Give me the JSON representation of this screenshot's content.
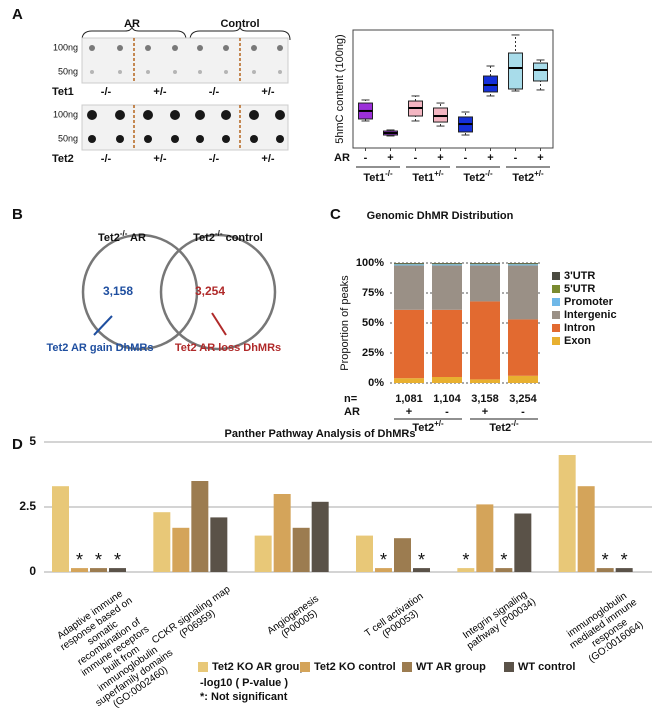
{
  "panel_labels": [
    "A",
    "B",
    "C",
    "D"
  ],
  "dot_blot": {
    "groups": [
      "AR",
      "Control"
    ],
    "blots": [
      {
        "gene": "Tet1",
        "amounts": [
          "100ng",
          "50ng"
        ],
        "genotypes": [
          "-/-",
          "+/-",
          "-/-",
          "+/-"
        ]
      },
      {
        "gene": "Tet2",
        "amounts": [
          "100ng",
          "50ng"
        ],
        "genotypes": [
          "-/-",
          "+/-",
          "-/-",
          "+/-"
        ]
      }
    ]
  },
  "venn": {
    "sets": [
      {
        "name": "Tet2",
        "sup": "-/-",
        "suffix": " AR",
        "count": "3,158",
        "label": "Tet2 AR gain DhMRs",
        "color": "#1f4fa0"
      },
      {
        "name": "Tet2",
        "sup": "-/-",
        "suffix": " control",
        "count": "3,254",
        "label": "Tet2 AR loss DhMRs",
        "color": "#b02a2a"
      }
    ]
  },
  "chart_data": [
    {
      "type": "box",
      "y_label": "5hmC content (100ng)",
      "row_label": "AR",
      "categories": [
        "-",
        "+",
        "-",
        "+",
        "-",
        "+",
        "-",
        "+"
      ],
      "groups": [
        {
          "name": "Tet1",
          "sup": "-/-"
        },
        {
          "name": "Tet1",
          "sup": "+/-"
        },
        {
          "name": "Tet2",
          "sup": "-/-"
        },
        {
          "name": "Tet2",
          "sup": "+/-"
        }
      ],
      "ylim": [
        0,
        100
      ],
      "colors": [
        "#9b30d9",
        "#9b30d9",
        "#f4b6c2",
        "#f4b6c2",
        "#1530d9",
        "#1530d9",
        "#a8dcea",
        "#a8dcea"
      ],
      "min": [
        22.9,
        10.2,
        22.9,
        18.6,
        11.0,
        44.1,
        48.3,
        49.2
      ],
      "q1": [
        24.6,
        11.0,
        27.1,
        22.0,
        13.6,
        47.5,
        50.0,
        56.8
      ],
      "median": [
        31.4,
        12.7,
        33.9,
        27.1,
        20.3,
        53.4,
        67.8,
        66.1
      ],
      "q3": [
        38.1,
        14.4,
        39.8,
        33.9,
        26.3,
        61.0,
        80.5,
        72.0
      ],
      "max": [
        40.7,
        15.3,
        44.1,
        38.1,
        30.5,
        69.5,
        95.8,
        74.6
      ]
    },
    {
      "type": "stacked_bar",
      "title": "Genomic DhMR Distribution",
      "y_label": "Proportion of peaks",
      "n_label": "n=",
      "categories": [
        "1,081",
        "1,104",
        "3,158",
        "3,254"
      ],
      "row_label": "AR",
      "ar": [
        "+",
        "-",
        "+",
        "-"
      ],
      "groups": [
        {
          "name": "Tet2",
          "sup": "+/-"
        },
        {
          "name": "Tet2",
          "sup": "-/-"
        }
      ],
      "ylim": [
        0,
        100
      ],
      "yticks": [
        {
          "value": 0,
          "label": "0%"
        },
        {
          "value": 25,
          "label": "25%"
        },
        {
          "value": 50,
          "label": "50%"
        },
        {
          "value": 75,
          "label": "75%"
        },
        {
          "value": 100,
          "label": "100%"
        }
      ],
      "grid": true,
      "series": [
        {
          "name": "Exon",
          "color": "#e8b030",
          "values": [
            4,
            5,
            3,
            6
          ]
        },
        {
          "name": "Intron",
          "color": "#e26a30",
          "values": [
            57,
            56,
            65,
            47
          ]
        },
        {
          "name": "Intergenic",
          "color": "#9a9086",
          "values": [
            37,
            37,
            30,
            45
          ]
        },
        {
          "name": "Promoter",
          "color": "#6fb8e8",
          "values": [
            1,
            1,
            1,
            1
          ]
        },
        {
          "name": "5'UTR",
          "color": "#7a8a30",
          "values": [
            0.5,
            0.5,
            0.5,
            0.5
          ]
        },
        {
          "name": "3'UTR",
          "color": "#4a4a40",
          "values": [
            0.5,
            0.5,
            0.5,
            0.5
          ]
        }
      ]
    },
    {
      "type": "grouped_bar",
      "title": "Panther Pathway Analysis of DhMRs",
      "x_label": "-log10 ( P-value )",
      "note": "*: Not significant",
      "marker": "*",
      "categories": [
        "Adaptive immune response based on somatic recombination of immune receptors built from immunoglobulin superfamily domains (GO:0002460)",
        "CCKR signaling map (P06959)",
        "Angiogenesis (P00005)",
        "T cell activation (P00053)",
        "Integrin signaling pathway (P00034)",
        "immunoglobulin mediated immune response (GO:0016064)"
      ],
      "ylim": [
        0,
        5
      ],
      "yticks": [
        0,
        2.5,
        5
      ],
      "grid": true,
      "series": [
        {
          "name": "Tet2 KO AR group",
          "color": "#e8c878",
          "values": [
            3.3,
            2.3,
            1.4,
            1.4,
            0.15,
            4.5
          ],
          "not_significant": [
            false,
            false,
            false,
            false,
            true,
            false
          ]
        },
        {
          "name": "Tet2 KO control",
          "color": "#d4a45a",
          "values": [
            0.15,
            1.7,
            3.0,
            0.15,
            2.6,
            3.3
          ],
          "not_significant": [
            true,
            false,
            false,
            true,
            false,
            false
          ]
        },
        {
          "name": "WT AR group",
          "color": "#9c7c50",
          "values": [
            0.15,
            3.5,
            1.7,
            1.3,
            0.15,
            0.15
          ],
          "not_significant": [
            true,
            false,
            false,
            false,
            true,
            true
          ]
        },
        {
          "name": "WT control",
          "color": "#5a5248",
          "values": [
            0.15,
            2.1,
            2.7,
            0.15,
            2.25,
            0.15
          ],
          "not_significant": [
            true,
            false,
            false,
            true,
            false,
            true
          ]
        }
      ]
    }
  ]
}
